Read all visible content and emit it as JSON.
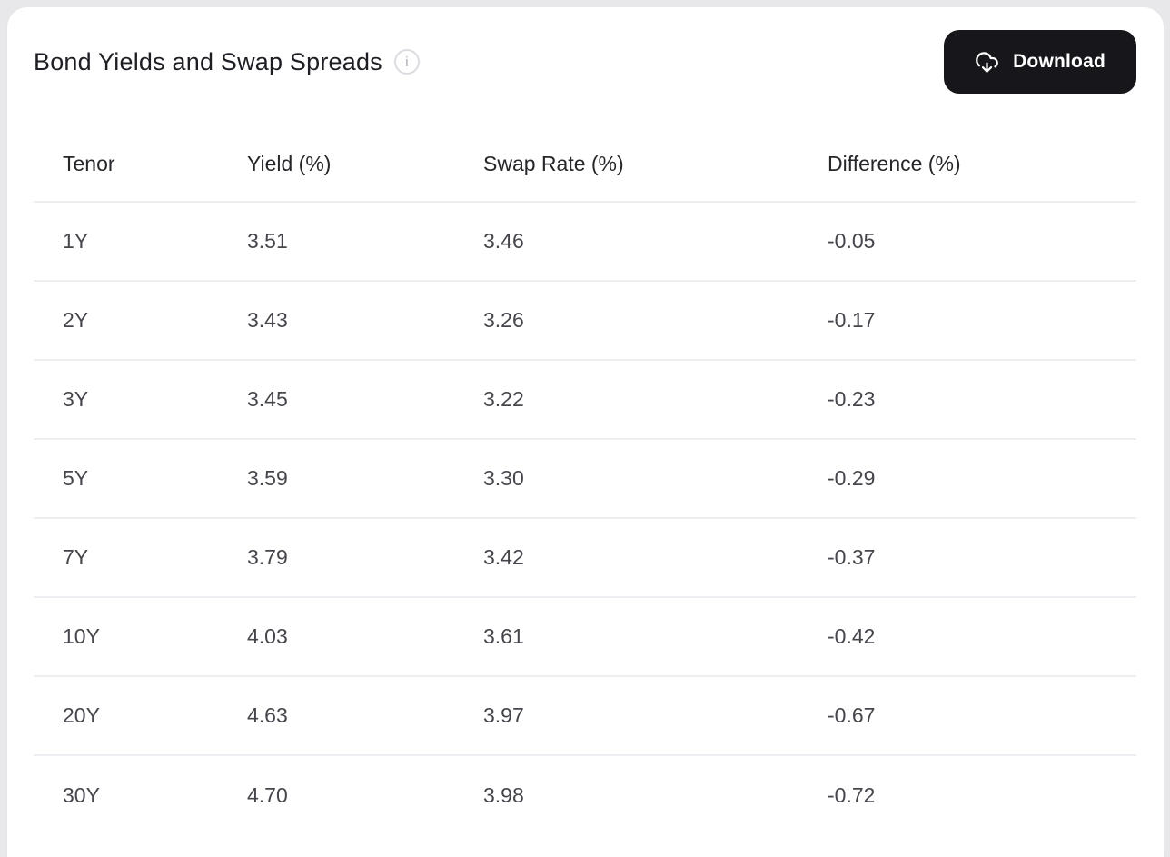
{
  "page": {
    "title": "Bond Yields and Swap Spreads"
  },
  "header": {
    "info_icon_glyph": "i",
    "download_label": "Download"
  },
  "table": {
    "columns": [
      "Tenor",
      "Yield (%)",
      "Swap Rate (%)",
      "Difference (%)"
    ],
    "rows": [
      [
        "1Y",
        "3.51",
        "3.46",
        "-0.05"
      ],
      [
        "2Y",
        "3.43",
        "3.26",
        "-0.17"
      ],
      [
        "3Y",
        "3.45",
        "3.22",
        "-0.23"
      ],
      [
        "5Y",
        "3.59",
        "3.30",
        "-0.29"
      ],
      [
        "7Y",
        "3.79",
        "3.42",
        "-0.37"
      ],
      [
        "10Y",
        "4.03",
        "3.61",
        "-0.42"
      ],
      [
        "20Y",
        "4.63",
        "3.97",
        "-0.67"
      ],
      [
        "30Y",
        "4.70",
        "3.98",
        "-0.72"
      ]
    ]
  },
  "colors": {
    "page_bg": "#e8e8ea",
    "card_bg": "#ffffff",
    "button_bg": "#17171b",
    "button_text": "#ffffff",
    "divider": "#ededf2",
    "title_text": "#1e1e24",
    "header_text": "#26262b",
    "cell_text": "#45454c",
    "info_icon": "#a8a8b2"
  },
  "chart_data": {
    "type": "table",
    "title": "Bond Yields and Swap Spreads",
    "columns": [
      "Tenor",
      "Yield (%)",
      "Swap Rate (%)",
      "Difference (%)"
    ],
    "rows": [
      {
        "tenor": "1Y",
        "yield": 3.51,
        "swap_rate": 3.46,
        "difference": -0.05
      },
      {
        "tenor": "2Y",
        "yield": 3.43,
        "swap_rate": 3.26,
        "difference": -0.17
      },
      {
        "tenor": "3Y",
        "yield": 3.45,
        "swap_rate": 3.22,
        "difference": -0.23
      },
      {
        "tenor": "5Y",
        "yield": 3.59,
        "swap_rate": 3.3,
        "difference": -0.29
      },
      {
        "tenor": "7Y",
        "yield": 3.79,
        "swap_rate": 3.42,
        "difference": -0.37
      },
      {
        "tenor": "10Y",
        "yield": 4.03,
        "swap_rate": 3.61,
        "difference": -0.42
      },
      {
        "tenor": "20Y",
        "yield": 4.63,
        "swap_rate": 3.97,
        "difference": -0.67
      },
      {
        "tenor": "30Y",
        "yield": 4.7,
        "swap_rate": 3.98,
        "difference": -0.72
      }
    ]
  }
}
